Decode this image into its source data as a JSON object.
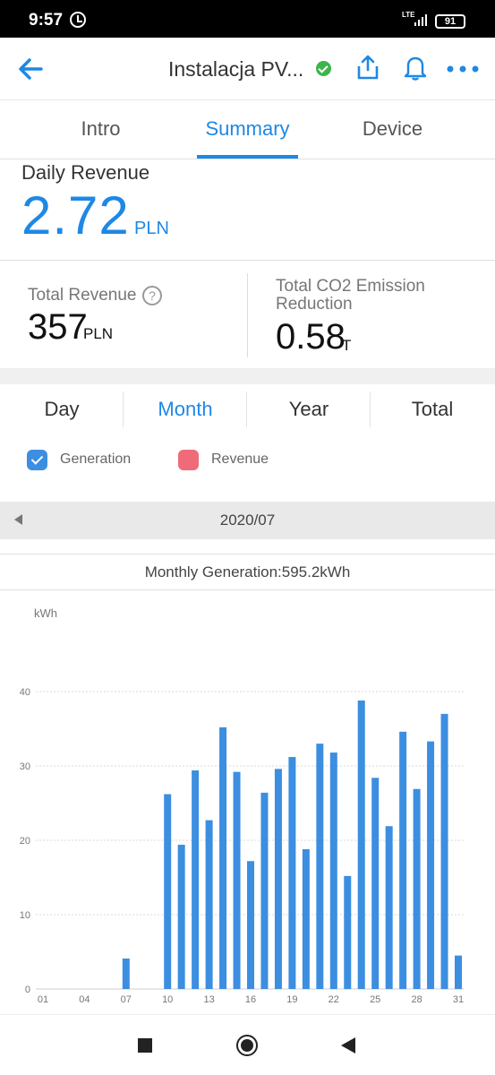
{
  "status_bar": {
    "time": "9:57",
    "network": "LTE",
    "battery": "91"
  },
  "app_bar": {
    "title": "Instalacja PV..."
  },
  "tabs": [
    {
      "label": "Intro",
      "active": false
    },
    {
      "label": "Summary",
      "active": true
    },
    {
      "label": "Device",
      "active": false
    }
  ],
  "daily": {
    "label": "Daily Revenue",
    "value": "2.72",
    "unit": "PLN"
  },
  "total_revenue": {
    "label": "Total Revenue",
    "help": "?",
    "value": "357",
    "unit": "PLN"
  },
  "co2": {
    "label": "Total CO2 Emission Reduction",
    "value": "0.58",
    "unit": "T"
  },
  "period_tabs": [
    {
      "label": "Day",
      "active": false
    },
    {
      "label": "Month",
      "active": true
    },
    {
      "label": "Year",
      "active": false
    },
    {
      "label": "Total",
      "active": false
    }
  ],
  "legend": {
    "generation": {
      "label": "Generation",
      "checked": true,
      "color": "#3c8ee0"
    },
    "revenue": {
      "label": "Revenue",
      "checked": false,
      "color": "#f06b7a"
    }
  },
  "date_nav": {
    "date": "2020/07"
  },
  "monthly_summary": "Monthly Generation:595.2kWh",
  "colors": {
    "accent": "#1e88e5",
    "bar": "#3c8ee0"
  },
  "chart_data": {
    "type": "bar",
    "ylabel": "kWh",
    "ylim": [
      0,
      40
    ],
    "yticks": [
      "0",
      "10",
      "20",
      "30",
      "40"
    ],
    "days": [
      1,
      2,
      3,
      4,
      5,
      6,
      7,
      8,
      9,
      10,
      11,
      12,
      13,
      14,
      15,
      16,
      17,
      18,
      19,
      20,
      21,
      22,
      23,
      24,
      25,
      26,
      27,
      28,
      29,
      30,
      31
    ],
    "xtick_labels": [
      "01",
      "04",
      "07",
      "10",
      "13",
      "16",
      "19",
      "22",
      "25",
      "28",
      "31"
    ],
    "values": [
      0,
      0,
      0,
      0,
      0,
      0,
      4.1,
      0,
      0,
      26.2,
      19.4,
      29.4,
      22.7,
      35.2,
      29.2,
      17.2,
      26.4,
      29.6,
      31.2,
      18.8,
      33.0,
      31.8,
      15.2,
      38.8,
      28.4,
      21.9,
      34.6,
      26.9,
      33.3,
      37.0,
      4.5
    ],
    "series": [
      {
        "name": "Generation"
      }
    ]
  }
}
